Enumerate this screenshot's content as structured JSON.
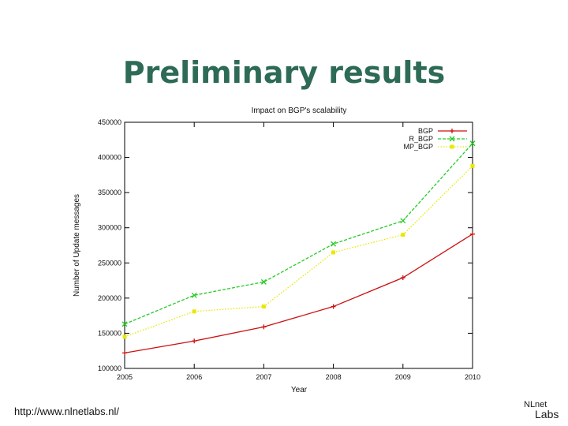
{
  "slide": {
    "title": "Preliminary results",
    "footer_url": "http://www.nlnetlabs.nl/",
    "logo_line1": "NLnet",
    "logo_line2": "Labs"
  },
  "chart_data": {
    "type": "line",
    "title": "Impact on BGP's scalability",
    "xlabel": "Year",
    "ylabel": "Number of Update messages",
    "x": [
      2005,
      2006,
      2007,
      2008,
      2009,
      2010
    ],
    "xlim": [
      2005,
      2010
    ],
    "ylim": [
      100000,
      450000
    ],
    "yticks": [
      100000,
      150000,
      200000,
      250000,
      300000,
      350000,
      400000,
      450000
    ],
    "grid": false,
    "legend_position": "top-right",
    "series": [
      {
        "name": "BGP",
        "color": "#cc1111",
        "marker": "plus",
        "dash": "solid",
        "values": [
          122000,
          139000,
          159000,
          188000,
          229000,
          291000
        ]
      },
      {
        "name": "R_BGP",
        "color": "#22cc22",
        "marker": "cross",
        "dash": "dashed",
        "values": [
          163000,
          204000,
          223000,
          277000,
          310000,
          420000
        ]
      },
      {
        "name": "MP_BGP",
        "color": "#e8e800",
        "marker": "square",
        "dash": "dotted",
        "values": [
          145000,
          181000,
          188000,
          265000,
          290000,
          388000
        ]
      }
    ]
  }
}
